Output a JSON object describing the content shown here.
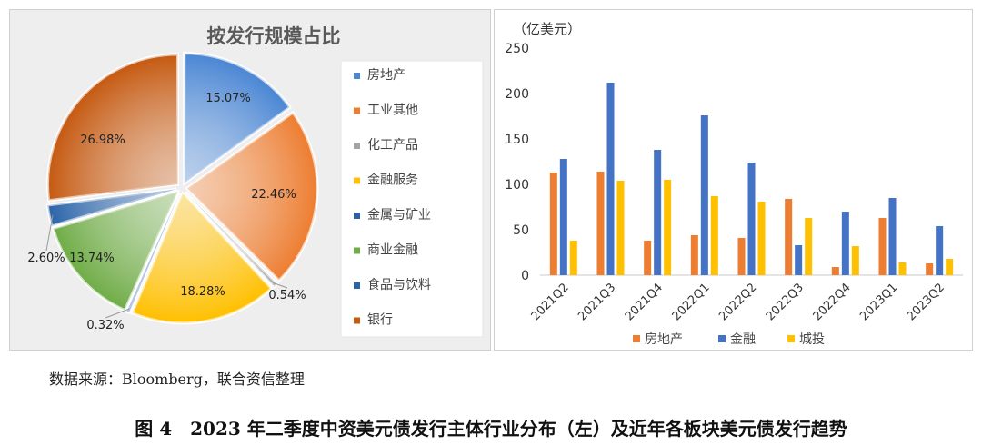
{
  "chart_data": [
    {
      "type": "pie",
      "title": "按发行规模占比",
      "slices": [
        {
          "name": "房地产",
          "value": 15.07,
          "label": "15.07%",
          "color": "#4a86d4"
        },
        {
          "name": "工业其他",
          "value": 22.46,
          "label": "22.46%",
          "color": "#ed7d31"
        },
        {
          "name": "化工产品",
          "value": 0.54,
          "label": "0.54%",
          "color": "#a5a5a5"
        },
        {
          "name": "金融服务",
          "value": 18.28,
          "label": "18.28%",
          "color": "#ffc000"
        },
        {
          "name": "金属与矿业",
          "value": 0.32,
          "label": "0.32%",
          "color": "#2e5fa8"
        },
        {
          "name": "商业金融",
          "value": 13.74,
          "label": "13.74%",
          "color": "#70ad47"
        },
        {
          "name": "食品与饮料",
          "value": 2.6,
          "label": "2.60%",
          "color": "#2a63a8"
        },
        {
          "name": "银行",
          "value": 26.98,
          "label": "26.98%",
          "color": "#c55a11"
        }
      ],
      "legend_position": "right"
    },
    {
      "type": "bar",
      "unit_label": "（亿美元）",
      "categories": [
        "2021Q2",
        "2021Q3",
        "2021Q4",
        "2022Q1",
        "2022Q2",
        "2022Q3",
        "2022Q4",
        "2023Q1",
        "2023Q2"
      ],
      "series": [
        {
          "name": "房地产",
          "color": "#ed7d31",
          "values": [
            113,
            114,
            38,
            44,
            41,
            84,
            9,
            63,
            13
          ]
        },
        {
          "name": "金融",
          "color": "#4472c4",
          "values": [
            128,
            212,
            138,
            176,
            124,
            33,
            70,
            85,
            54
          ]
        },
        {
          "name": "城投",
          "color": "#ffc000",
          "values": [
            38,
            104,
            105,
            87,
            81,
            63,
            32,
            14,
            18
          ]
        }
      ],
      "ylim": [
        0,
        250
      ],
      "yticks": [
        0,
        50,
        100,
        150,
        200,
        250
      ],
      "grid": false,
      "legend_position": "bottom"
    }
  ],
  "source_note": "数据来源：Bloomberg，联合资信整理",
  "caption": "图 4　2023 年二季度中资美元债发行主体行业分布（左）及近年各板块美元债发行趋势"
}
